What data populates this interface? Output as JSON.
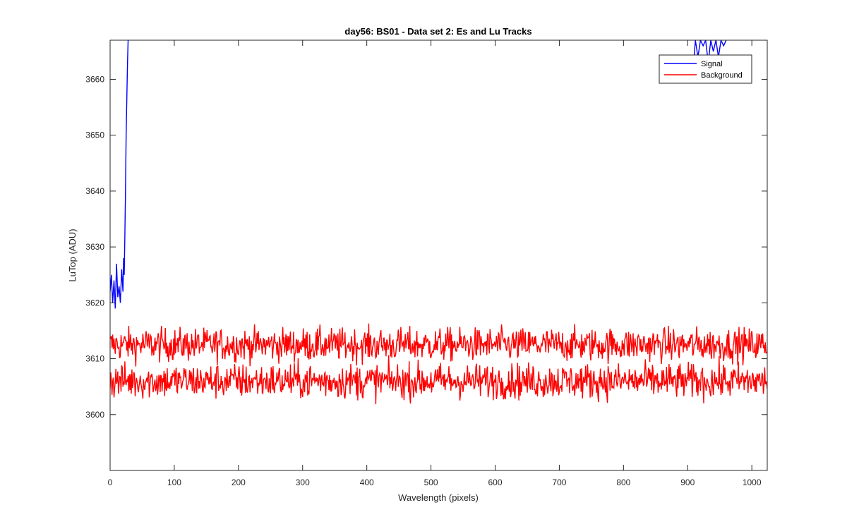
{
  "chart_data": {
    "type": "line",
    "title": "day56: BS01 - Data set 2: Es and Lu Tracks",
    "xlabel": "Wavelength (pixels)",
    "ylabel": "LuTop (ADU)",
    "xlim": [
      0,
      1024
    ],
    "ylim": [
      3590,
      3667
    ],
    "xticks": [
      0,
      100,
      200,
      300,
      400,
      500,
      600,
      700,
      800,
      900,
      1000
    ],
    "yticks": [
      3600,
      3610,
      3620,
      3630,
      3640,
      3650,
      3660
    ],
    "grid": false,
    "legend": {
      "placement": "top-right",
      "entries": [
        "Signal",
        "Background"
      ]
    },
    "series": [
      {
        "name": "Signal",
        "color": "#0000ff",
        "x": [
          0,
          2,
          4,
          6,
          8,
          10,
          12,
          14,
          16,
          18,
          20,
          21,
          22,
          23,
          24,
          25,
          26,
          27,
          28,
          29
        ],
        "values": [
          3622,
          3625,
          3620,
          3624,
          3619,
          3627,
          3621,
          3623,
          3620,
          3626,
          3622,
          3628,
          3625,
          3632,
          3640,
          3650,
          3656,
          3662,
          3667,
          3667
        ]
      },
      {
        "name": "Signal",
        "color": "#0000ff",
        "x": [
          908,
          912,
          916,
          920,
          924,
          928,
          932,
          936,
          940,
          944,
          948,
          952,
          956,
          960
        ],
        "values": [
          3661,
          3667,
          3664,
          3667,
          3666,
          3667,
          3663,
          3667,
          3665,
          3667,
          3664,
          3667,
          3666,
          3667
        ]
      },
      {
        "name": "Background",
        "color": "#ff0000",
        "mean": 3612.5,
        "spread": 1.5,
        "x_start": 0,
        "x_end": 1024,
        "step": 1
      },
      {
        "name": "Background",
        "color": "#ff0000",
        "mean": 3606,
        "spread": 1.6,
        "x_start": 0,
        "x_end": 1024,
        "step": 1
      }
    ],
    "colors": {
      "signal": "#0000ff",
      "background": "#ff0000"
    }
  }
}
